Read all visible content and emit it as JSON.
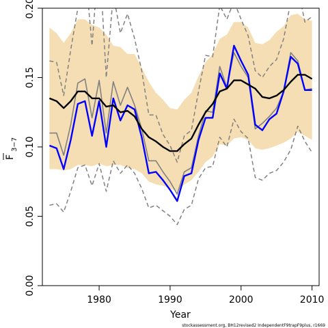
{
  "chart_data": {
    "type": "line",
    "xlabel": "Year",
    "ylabel_main": "F",
    "ylabel_sub": "3−7",
    "source_note": "stockassessment.org, BH12revised2 IndependentF9trapF9plus, r1669",
    "xlim": [
      1972,
      2011
    ],
    "ylim": [
      0,
      0.2
    ],
    "x_ticks": [
      1980,
      1990,
      2000,
      2010
    ],
    "x_tick_labels": [
      "1980",
      "1990",
      "2000",
      "2010"
    ],
    "y_ticks": [
      0.0,
      0.05,
      0.1,
      0.15,
      0.2
    ],
    "y_tick_labels": [
      "0.00",
      "0.05",
      "0.10",
      "0.15",
      "0.20"
    ],
    "colors": {
      "band": "#f5deb3",
      "estimate": "#000000",
      "bounds": "#808080",
      "observed_blue": "#0000ff",
      "observed_gray": "#808080"
    },
    "x": [
      1973,
      1974,
      1975,
      1976,
      1977,
      1978,
      1979,
      1980,
      1981,
      1982,
      1983,
      1984,
      1985,
      1986,
      1987,
      1988,
      1989,
      1990,
      1991,
      1992,
      1993,
      1994,
      1995,
      1996,
      1997,
      1998,
      1999,
      2000,
      2001,
      2002,
      2003,
      2004,
      2005,
      2006,
      2007,
      2008,
      2009,
      2010
    ],
    "band_upper": [
      0.186,
      0.182,
      0.175,
      0.182,
      0.192,
      0.192,
      0.188,
      0.186,
      0.181,
      0.173,
      0.172,
      0.167,
      0.167,
      0.157,
      0.147,
      0.139,
      0.134,
      0.128,
      0.127,
      0.134,
      0.139,
      0.151,
      0.161,
      0.167,
      0.178,
      0.181,
      0.19,
      0.19,
      0.186,
      0.175,
      0.174,
      0.177,
      0.183,
      0.187,
      0.195,
      0.196,
      0.192,
      0.191
    ],
    "band_lower": [
      0.084,
      0.084,
      0.083,
      0.084,
      0.087,
      0.087,
      0.086,
      0.088,
      0.086,
      0.087,
      0.087,
      0.085,
      0.084,
      0.081,
      0.075,
      0.073,
      0.072,
      0.07,
      0.068,
      0.073,
      0.076,
      0.082,
      0.089,
      0.093,
      0.102,
      0.101,
      0.106,
      0.107,
      0.105,
      0.099,
      0.098,
      0.099,
      0.101,
      0.103,
      0.106,
      0.111,
      0.108,
      0.105
    ],
    "series": [
      {
        "name": "estimate",
        "style": "solid-thick",
        "values": [
          0.135,
          0.133,
          0.128,
          0.133,
          0.14,
          0.14,
          0.135,
          0.135,
          0.129,
          0.13,
          0.125,
          0.126,
          0.122,
          0.113,
          0.107,
          0.104,
          0.1,
          0.097,
          0.097,
          0.102,
          0.106,
          0.116,
          0.125,
          0.131,
          0.14,
          0.142,
          0.148,
          0.148,
          0.145,
          0.142,
          0.136,
          0.135,
          0.137,
          0.141,
          0.147,
          0.152,
          0.152,
          0.149
        ]
      },
      {
        "name": "upper-bound",
        "style": "dashed",
        "values": [
          0.162,
          0.161,
          0.137,
          0.17,
          0.2,
          0.23,
          0.173,
          0.24,
          0.15,
          0.21,
          0.182,
          0.196,
          0.178,
          0.155,
          0.123,
          0.123,
          0.109,
          0.101,
          0.089,
          0.108,
          0.112,
          0.14,
          0.166,
          0.165,
          0.202,
          0.192,
          0.205,
          0.192,
          0.18,
          0.155,
          0.15,
          0.158,
          0.163,
          0.178,
          0.205,
          0.215,
          0.19,
          0.194
        ]
      },
      {
        "name": "lower-bound",
        "style": "dashed",
        "values": [
          0.058,
          0.059,
          0.053,
          0.068,
          0.085,
          0.087,
          0.072,
          0.088,
          0.068,
          0.09,
          0.081,
          0.087,
          0.081,
          0.07,
          0.056,
          0.058,
          0.054,
          0.05,
          0.044,
          0.055,
          0.058,
          0.077,
          0.085,
          0.086,
          0.107,
          0.1,
          0.12,
          0.111,
          0.106,
          0.078,
          0.076,
          0.081,
          0.083,
          0.089,
          0.098,
          0.115,
          0.104,
          0.096
        ]
      },
      {
        "name": "observed-gray",
        "style": "solid-thin",
        "values": [
          0.11,
          0.11,
          0.094,
          0.116,
          0.146,
          0.149,
          0.121,
          0.148,
          0.11,
          0.147,
          0.13,
          0.143,
          0.13,
          0.113,
          0.09,
          0.09,
          0.082,
          0.075,
          0.066,
          0.082,
          0.085,
          0.108,
          0.126,
          0.125,
          0.158,
          0.143,
          0.168,
          0.158,
          0.15,
          0.113,
          0.117,
          0.122,
          0.128,
          0.14,
          0.168,
          0.162,
          0.141,
          0.142
        ]
      },
      {
        "name": "observed-blue",
        "style": "solid-medium",
        "values": [
          0.101,
          0.099,
          0.084,
          0.105,
          0.131,
          0.133,
          0.108,
          0.133,
          0.1,
          0.135,
          0.119,
          0.13,
          0.127,
          0.107,
          0.081,
          0.082,
          0.076,
          0.069,
          0.061,
          0.079,
          0.081,
          0.105,
          0.121,
          0.121,
          0.153,
          0.142,
          0.173,
          0.162,
          0.152,
          0.116,
          0.112,
          0.12,
          0.124,
          0.14,
          0.165,
          0.16,
          0.141,
          0.141
        ]
      }
    ]
  }
}
